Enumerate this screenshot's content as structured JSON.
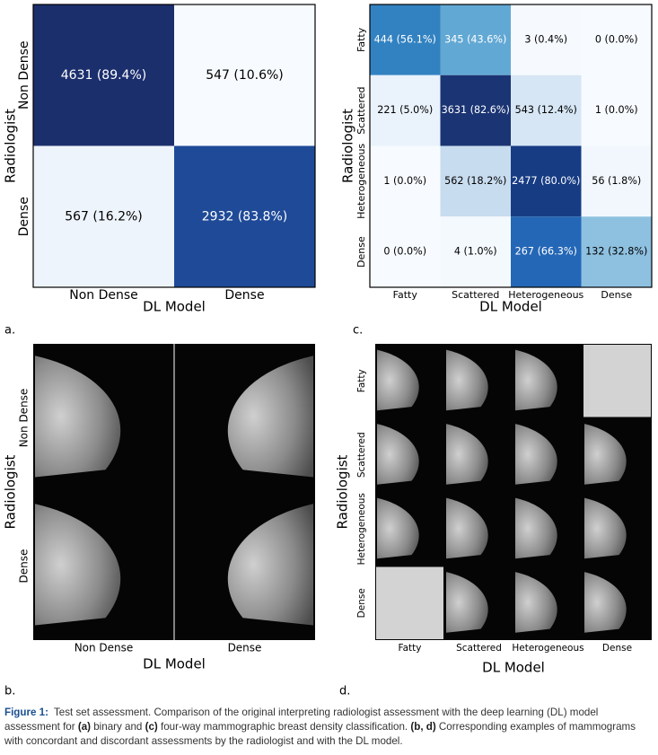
{
  "panels": [
    {
      "label": "a.",
      "kind": "matrix",
      "x_title": "DL Model",
      "y_title": "Radiologist",
      "x_labels": [
        "Non Dense",
        "Dense"
      ],
      "y_labels": [
        "Non Dense",
        "Dense"
      ],
      "cells": [
        [
          {
            "text": "4631 (89.4%)",
            "fill": "#1c2f6d",
            "ink": "#ffffff"
          },
          {
            "text": "547 (10.6%)",
            "fill": "#f7fbff",
            "ink": "#000000"
          }
        ],
        [
          {
            "text": "567 (16.2%)",
            "fill": "#eef4fb",
            "ink": "#000000"
          },
          {
            "text": "2932 (83.8%)",
            "fill": "#1f4a98",
            "ink": "#ffffff"
          }
        ]
      ]
    },
    {
      "label": "c.",
      "kind": "matrix",
      "x_title": "DL Model",
      "y_title": "Radiologist",
      "x_labels": [
        "Fatty",
        "Scattered",
        "Heterogeneous",
        "Dense"
      ],
      "y_labels": [
        "Fatty",
        "Scattered",
        "Heterogeneous",
        "Dense"
      ],
      "cells": [
        [
          {
            "text": "444 (56.1%)",
            "fill": "#3282c1",
            "ink": "#ffffff"
          },
          {
            "text": "345 (43.6%)",
            "fill": "#62a8d4",
            "ink": "#ffffff"
          },
          {
            "text": "3 (0.4%)",
            "fill": "#f6faff",
            "ink": "#000000"
          },
          {
            "text": "0 (0.0%)",
            "fill": "#f7fbff",
            "ink": "#000000"
          }
        ],
        [
          {
            "text": "221 (5.0%)",
            "fill": "#eaf2fb",
            "ink": "#000000"
          },
          {
            "text": "3631 (82.6%)",
            "fill": "#1b3473",
            "ink": "#ffffff"
          },
          {
            "text": "543 (12.4%)",
            "fill": "#d6e6f4",
            "ink": "#000000"
          },
          {
            "text": "1 (0.0%)",
            "fill": "#f7fbff",
            "ink": "#000000"
          }
        ],
        [
          {
            "text": "1 (0.0%)",
            "fill": "#f7fbff",
            "ink": "#000000"
          },
          {
            "text": "562 (18.2%)",
            "fill": "#c8dcef",
            "ink": "#000000"
          },
          {
            "text": "2477 (80.0%)",
            "fill": "#173c84",
            "ink": "#ffffff"
          },
          {
            "text": "56 (1.8%)",
            "fill": "#f2f7fd",
            "ink": "#000000"
          }
        ],
        [
          {
            "text": "0 (0.0%)",
            "fill": "#f7fbff",
            "ink": "#000000"
          },
          {
            "text": "4 (1.0%)",
            "fill": "#f4f9fe",
            "ink": "#000000"
          },
          {
            "text": "267 (66.3%)",
            "fill": "#2467b6",
            "ink": "#ffffff"
          },
          {
            "text": "132 (32.8%)",
            "fill": "#8ec1e0",
            "ink": "#000000"
          }
        ]
      ]
    },
    {
      "label": "b.",
      "kind": "images",
      "x_title": "DL Model",
      "y_title": "Radiologist",
      "x_labels": [
        "Non Dense",
        "Dense"
      ],
      "y_labels": [
        "Non Dense",
        "Dense"
      ]
    },
    {
      "label": "d.",
      "kind": "images",
      "x_title": "DL Model",
      "y_title": "Radiologist",
      "x_labels": [
        "Fatty",
        "Scattered",
        "Heterogeneous",
        "Dense"
      ],
      "y_labels": [
        "Fatty",
        "Scattered",
        "Heterogeneous",
        "Dense"
      ]
    }
  ],
  "caption": {
    "label": "Figure 1:",
    "segments": [
      "Test set assessment. Comparison of the original interpreting radiologist assessment with the deep learning (DL) model assessment for ",
      "(a)",
      " binary and ",
      "(c)",
      " four-way mammographic breast density classification. ",
      "(b, d)",
      " Corresponding examples of mammograms with concordant and discordant assessments by the radiologist and with the DL model."
    ]
  }
}
